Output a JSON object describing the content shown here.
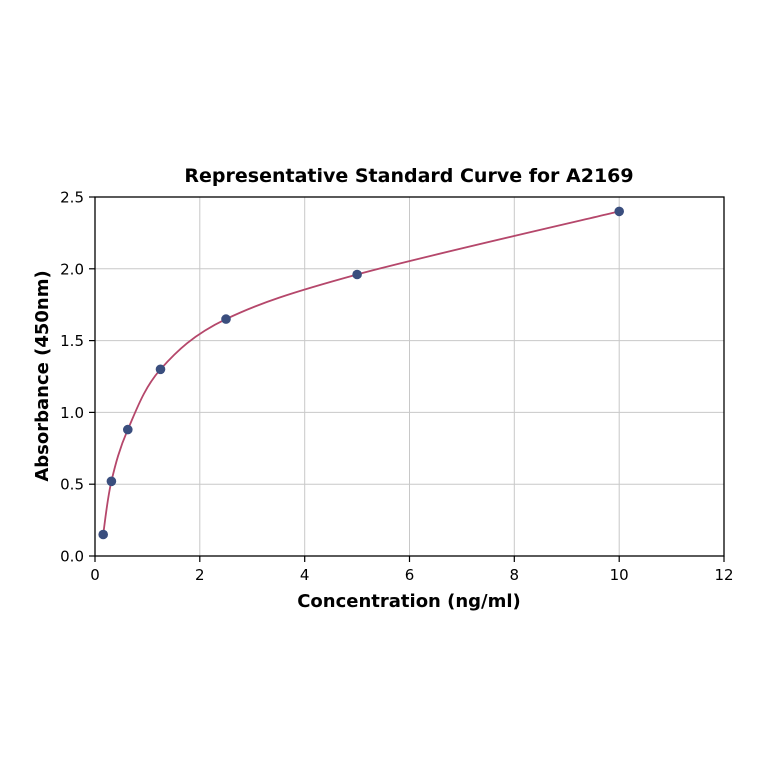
{
  "chart_data": {
    "type": "scatter",
    "title": "Representative Standard Curve for A2169",
    "xlabel": "Concentration (ng/ml)",
    "ylabel": "Absorbance (450nm)",
    "xlim": [
      0,
      12
    ],
    "ylim": [
      0.0,
      2.5
    ],
    "x_ticks": [
      0,
      2,
      4,
      6,
      8,
      10,
      12
    ],
    "x_tick_labels": [
      "0",
      "2",
      "4",
      "6",
      "8",
      "10",
      "12"
    ],
    "y_ticks": [
      0.0,
      0.5,
      1.0,
      1.5,
      2.0,
      2.5
    ],
    "y_tick_labels": [
      "0.0",
      "0.5",
      "1.0",
      "1.5",
      "2.0",
      "2.5"
    ],
    "grid": true,
    "legend": "none",
    "points": {
      "x": [
        0.156,
        0.3125,
        0.625,
        1.25,
        2.5,
        5,
        10
      ],
      "y": [
        0.15,
        0.52,
        0.88,
        1.3,
        1.65,
        1.96,
        2.4
      ]
    },
    "fit_curve": true,
    "colors": {
      "point": "#3a4e7e",
      "curve": "#b5476b",
      "grid": "#c8c8c8",
      "axis": "#000000",
      "background": "#ffffff"
    }
  }
}
